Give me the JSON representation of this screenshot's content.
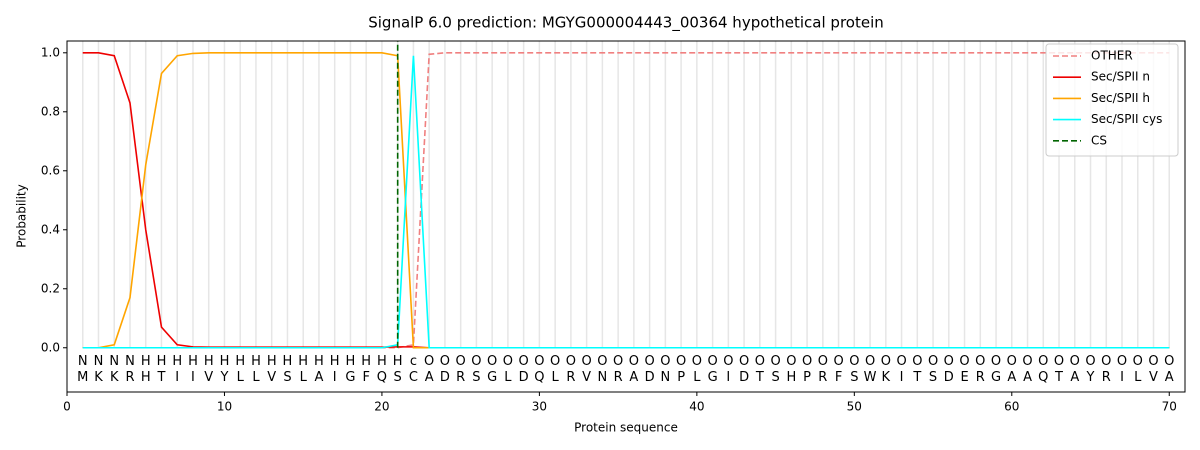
{
  "chart_data": {
    "type": "line",
    "title": "SignalP 6.0 prediction: MGYG000004443_00364 hypothetical protein",
    "x_label": "Protein sequence",
    "y_label": "Probability",
    "xlim": [
      0,
      71
    ],
    "ylim": [
      -0.15,
      1.04
    ],
    "xticks": [
      0,
      10,
      20,
      30,
      40,
      50,
      60,
      70
    ],
    "yticks": [
      {
        "value": 0,
        "label": "0.0"
      },
      {
        "value": 0.2,
        "label": "0.2"
      },
      {
        "value": 0.4,
        "label": "0.4"
      },
      {
        "value": 0.6,
        "label": "0.6"
      },
      {
        "value": 0.8,
        "label": "0.8"
      },
      {
        "value": 1.0,
        "label": "1.0"
      }
    ],
    "legend": "upper right",
    "x": [
      1,
      2,
      3,
      4,
      5,
      6,
      7,
      8,
      9,
      10,
      11,
      12,
      13,
      14,
      15,
      16,
      17,
      18,
      19,
      20,
      21,
      22,
      23,
      24,
      25,
      26,
      27,
      28,
      29,
      30,
      31,
      32,
      33,
      34,
      35,
      36,
      37,
      38,
      39,
      40,
      41,
      42,
      43,
      44,
      45,
      46,
      47,
      48,
      49,
      50,
      51,
      52,
      53,
      54,
      55,
      56,
      57,
      58,
      59,
      60,
      61,
      62,
      63,
      64,
      65,
      66,
      67,
      68,
      69,
      70
    ],
    "residues": [
      "M",
      "K",
      "K",
      "R",
      "H",
      "T",
      "I",
      "I",
      "V",
      "Y",
      "L",
      "L",
      "V",
      "S",
      "L",
      "A",
      "I",
      "G",
      "F",
      "Q",
      "S",
      "C",
      "A",
      "D",
      "R",
      "S",
      "G",
      "L",
      "D",
      "Q",
      "L",
      "R",
      "V",
      "N",
      "R",
      "A",
      "D",
      "N",
      "P",
      "L",
      "G",
      "I",
      "D",
      "T",
      "S",
      "H",
      "P",
      "R",
      "F",
      "S",
      "W",
      "K",
      "I",
      "T",
      "S",
      "D",
      "E",
      "R",
      "G",
      "A",
      "A",
      "Q",
      "T",
      "A",
      "Y",
      "R",
      "I",
      "L",
      "V",
      "A"
    ],
    "annotations": [
      "N",
      "N",
      "N",
      "N",
      "H",
      "H",
      "H",
      "H",
      "H",
      "H",
      "H",
      "H",
      "H",
      "H",
      "H",
      "H",
      "H",
      "H",
      "H",
      "H",
      "H",
      "c",
      "O",
      "O",
      "O",
      "O",
      "O",
      "O",
      "O",
      "O",
      "O",
      "O",
      "O",
      "O",
      "O",
      "O",
      "O",
      "O",
      "O",
      "O",
      "O",
      "O",
      "O",
      "O",
      "O",
      "O",
      "O",
      "O",
      "O",
      "O",
      "O",
      "O",
      "O",
      "O",
      "O",
      "O",
      "O",
      "O",
      "O",
      "O",
      "O",
      "O",
      "O",
      "O",
      "O",
      "O",
      "O",
      "O",
      "O",
      "O"
    ],
    "annotation_colors": {
      "N": "#ff0000",
      "H": "#ffa500",
      "c": "#00e5ee",
      "O": "#808080"
    },
    "series": [
      {
        "name": "OTHER",
        "color": "#f08080",
        "linestyle": "dashed",
        "values": [
          0,
          0,
          0,
          0,
          0,
          0,
          0,
          0,
          0,
          0,
          0,
          0,
          0,
          0,
          0,
          0,
          0,
          0,
          0,
          0,
          0,
          0.01,
          0.995,
          1,
          1,
          1,
          1,
          1,
          1,
          1,
          1,
          1,
          1,
          1,
          1,
          1,
          1,
          1,
          1,
          1,
          1,
          1,
          1,
          1,
          1,
          1,
          1,
          1,
          1,
          1,
          1,
          1,
          1,
          1,
          1,
          1,
          1,
          1,
          1,
          1,
          1,
          1,
          1,
          1,
          1,
          1,
          1,
          1,
          1,
          1
        ]
      },
      {
        "name": "Sec/SPII n",
        "color": "#ee0000",
        "linestyle": "solid",
        "values": [
          1.0,
          1.0,
          0.99,
          0.83,
          0.4,
          0.07,
          0.01,
          0.003,
          0.002,
          0.002,
          0.002,
          0.002,
          0.002,
          0.002,
          0.002,
          0.002,
          0.002,
          0.002,
          0.002,
          0.002,
          0.003,
          0.003,
          0,
          0,
          0,
          0,
          0,
          0,
          0,
          0,
          0,
          0,
          0,
          0,
          0,
          0,
          0,
          0,
          0,
          0,
          0,
          0,
          0,
          0,
          0,
          0,
          0,
          0,
          0,
          0,
          0,
          0,
          0,
          0,
          0,
          0,
          0,
          0,
          0,
          0,
          0,
          0,
          0,
          0,
          0,
          0,
          0,
          0,
          0,
          0
        ]
      },
      {
        "name": "Sec/SPII h",
        "color": "#ffa500",
        "linestyle": "solid",
        "values": [
          0,
          0,
          0.01,
          0.17,
          0.62,
          0.93,
          0.99,
          0.998,
          1,
          1,
          1,
          1,
          1,
          1,
          1,
          1,
          1,
          1,
          1,
          1,
          0.99,
          0,
          0,
          0,
          0,
          0,
          0,
          0,
          0,
          0,
          0,
          0,
          0,
          0,
          0,
          0,
          0,
          0,
          0,
          0,
          0,
          0,
          0,
          0,
          0,
          0,
          0,
          0,
          0,
          0,
          0,
          0,
          0,
          0,
          0,
          0,
          0,
          0,
          0,
          0,
          0,
          0,
          0,
          0,
          0,
          0,
          0,
          0,
          0,
          0
        ]
      },
      {
        "name": "Sec/SPII cys",
        "color": "#00ffff",
        "linestyle": "solid",
        "values": [
          0,
          0,
          0,
          0,
          0,
          0,
          0,
          0,
          0,
          0,
          0,
          0,
          0,
          0,
          0,
          0,
          0,
          0,
          0,
          0,
          0.01,
          0.99,
          0,
          0,
          0,
          0,
          0,
          0,
          0,
          0,
          0,
          0,
          0,
          0,
          0,
          0,
          0,
          0,
          0,
          0,
          0,
          0,
          0,
          0,
          0,
          0,
          0,
          0,
          0,
          0,
          0,
          0,
          0,
          0,
          0,
          0,
          0,
          0,
          0,
          0,
          0,
          0,
          0,
          0,
          0,
          0,
          0,
          0,
          0,
          0
        ]
      }
    ],
    "cleavage_site": {
      "name": "CS",
      "color": "#006400",
      "x": 21
    }
  }
}
